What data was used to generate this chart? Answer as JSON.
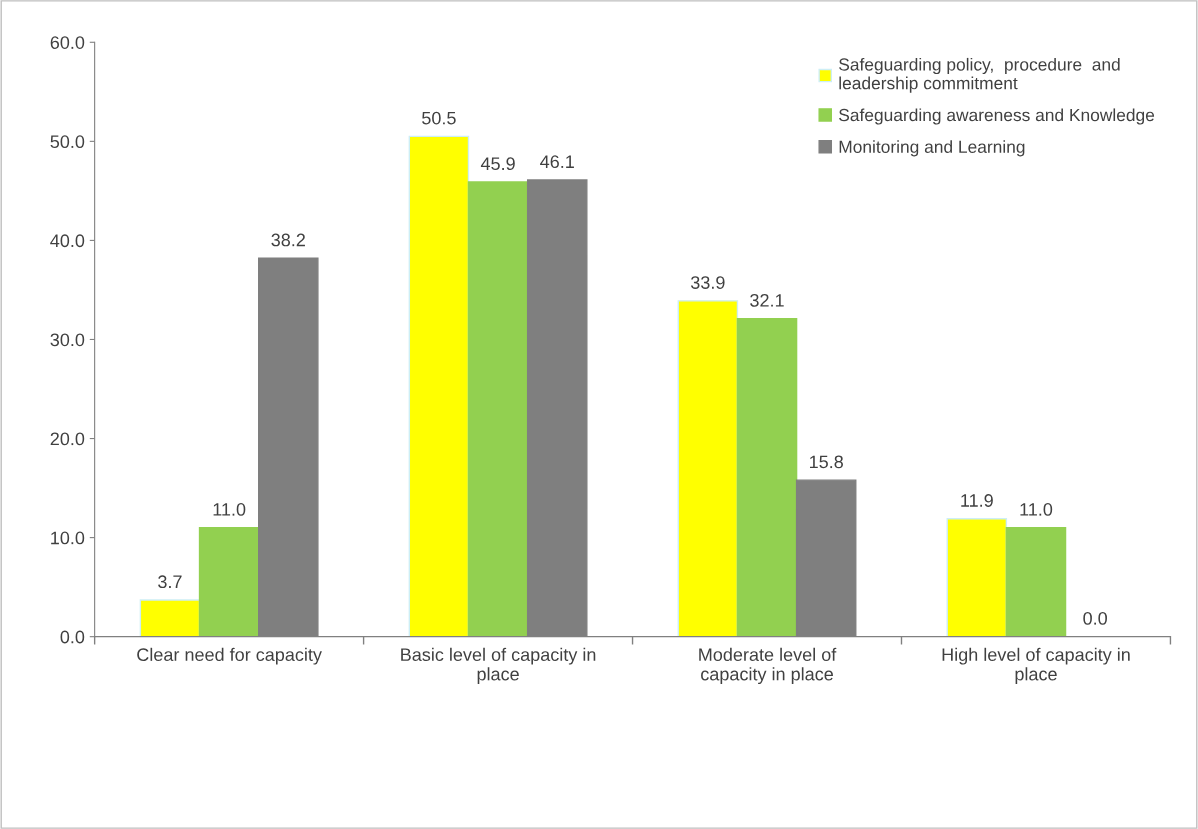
{
  "chart_data": {
    "type": "bar",
    "categories": [
      "Clear need for capacity",
      "Basic level of capacity in\nplace",
      "Moderate level of\ncapacity in place",
      "High level of capacity in\nplace"
    ],
    "series": [
      {
        "name": "Safeguarding policy,  procedure  and\nleadership commitment",
        "color": "#ffff00",
        "values": [
          3.7,
          50.5,
          33.9,
          11.9
        ],
        "value_labels": [
          "3.7",
          "50.5",
          "33.9",
          "11.9"
        ]
      },
      {
        "name": "Safeguarding awareness and Knowledge",
        "color": "#92d050",
        "values": [
          11.0,
          45.9,
          32.1,
          11.0
        ],
        "value_labels": [
          "11.0",
          "45.9",
          "32.1",
          "11.0"
        ]
      },
      {
        "name": "Monitoring and Learning",
        "color": "#7f7f7f",
        "values": [
          38.2,
          46.1,
          15.8,
          0.0
        ],
        "value_labels": [
          "38.2",
          "46.1",
          "15.8",
          "0.0"
        ]
      }
    ],
    "ylim": [
      0,
      60
    ],
    "yticks": [
      {
        "value": 0,
        "label": "0.0"
      },
      {
        "value": 10,
        "label": "10.0"
      },
      {
        "value": 20,
        "label": "20.0"
      },
      {
        "value": 30,
        "label": "30.0"
      },
      {
        "value": 40,
        "label": "40.0"
      },
      {
        "value": 50,
        "label": "50.0"
      },
      {
        "value": 60,
        "label": "60.0"
      }
    ],
    "legend": "top right",
    "grid": false
  }
}
